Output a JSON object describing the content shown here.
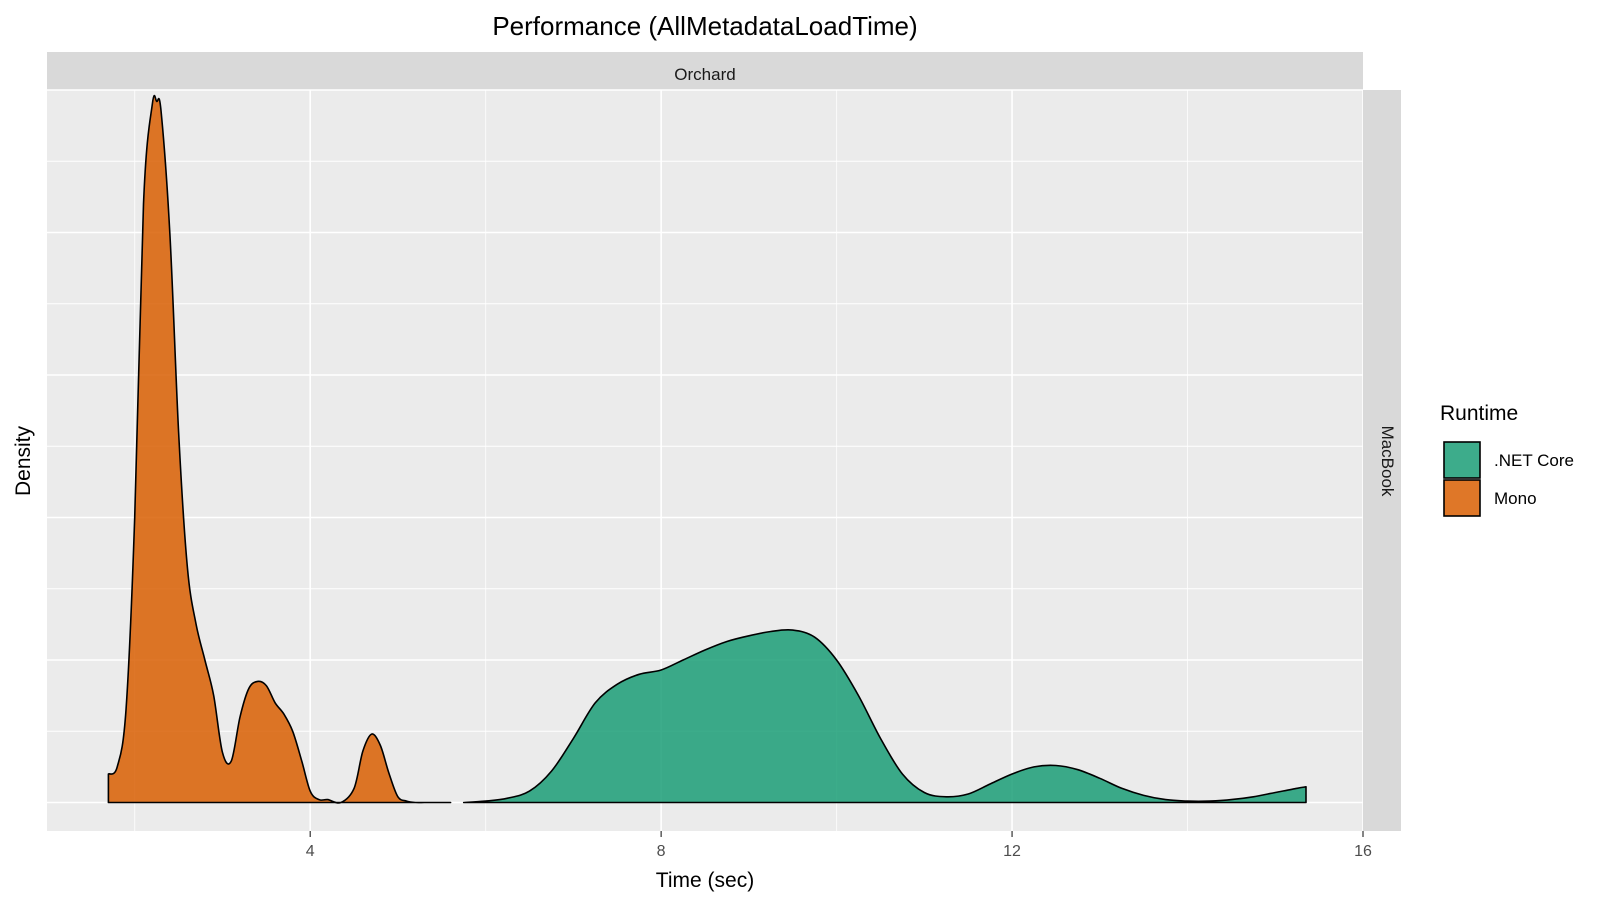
{
  "chart_data": {
    "type": "area",
    "title": "Performance (AllMetadataLoadTime)",
    "xlabel": "Time (sec)",
    "ylabel": "Density",
    "facet_col_label": "Orchard",
    "facet_row_label": "MacBook",
    "xlim": [
      1.0,
      16.0
    ],
    "ylim": [
      -0.02,
      0.5
    ],
    "x_ticks": [
      4,
      8,
      12,
      16
    ],
    "x_tick_labels": [
      "4",
      "8",
      "12",
      "16"
    ],
    "y_gridlines": [
      0,
      0.05,
      0.1,
      0.15,
      0.2,
      0.25,
      0.3,
      0.35,
      0.4,
      0.45,
      0.5
    ],
    "grid": true,
    "legend": {
      "title": "Runtime",
      "position": "right"
    },
    "series": [
      {
        "name": ".NET Core",
        "color": "#1B9E77",
        "x": [
          5.75,
          6.0,
          6.25,
          6.5,
          6.75,
          7.0,
          7.25,
          7.5,
          7.75,
          8.0,
          8.25,
          8.5,
          8.75,
          9.0,
          9.25,
          9.5,
          9.75,
          10.0,
          10.25,
          10.5,
          10.75,
          11.0,
          11.25,
          11.5,
          11.75,
          12.0,
          12.25,
          12.5,
          12.75,
          13.0,
          13.25,
          13.5,
          13.75,
          14.0,
          14.25,
          14.5,
          14.75,
          15.0,
          15.25,
          15.35
        ],
        "y": [
          0.0,
          0.001,
          0.003,
          0.008,
          0.022,
          0.045,
          0.07,
          0.083,
          0.09,
          0.093,
          0.1,
          0.107,
          0.113,
          0.117,
          0.12,
          0.121,
          0.116,
          0.1,
          0.075,
          0.045,
          0.02,
          0.007,
          0.004,
          0.006,
          0.013,
          0.02,
          0.025,
          0.026,
          0.023,
          0.017,
          0.01,
          0.005,
          0.002,
          0.001,
          0.001,
          0.002,
          0.004,
          0.007,
          0.01,
          0.011
        ]
      },
      {
        "name": "Mono",
        "color": "#D95F02",
        "x": [
          1.7,
          1.8,
          1.9,
          2.0,
          2.1,
          2.2,
          2.25,
          2.3,
          2.4,
          2.5,
          2.6,
          2.7,
          2.8,
          2.9,
          3.0,
          3.1,
          3.2,
          3.3,
          3.4,
          3.5,
          3.6,
          3.7,
          3.8,
          3.9,
          4.0,
          4.1,
          4.2,
          4.35,
          4.5,
          4.6,
          4.7,
          4.8,
          4.9,
          5.0,
          5.1,
          5.2,
          5.3,
          5.4,
          5.5,
          5.6
        ],
        "y": [
          0.02,
          0.025,
          0.065,
          0.2,
          0.42,
          0.49,
          0.492,
          0.485,
          0.4,
          0.26,
          0.165,
          0.125,
          0.1,
          0.075,
          0.035,
          0.029,
          0.06,
          0.08,
          0.085,
          0.082,
          0.07,
          0.062,
          0.05,
          0.03,
          0.008,
          0.002,
          0.002,
          0.0,
          0.01,
          0.036,
          0.048,
          0.04,
          0.02,
          0.004,
          0.001,
          0.0,
          0.0,
          0.0,
          0.0,
          0.0
        ]
      }
    ]
  }
}
